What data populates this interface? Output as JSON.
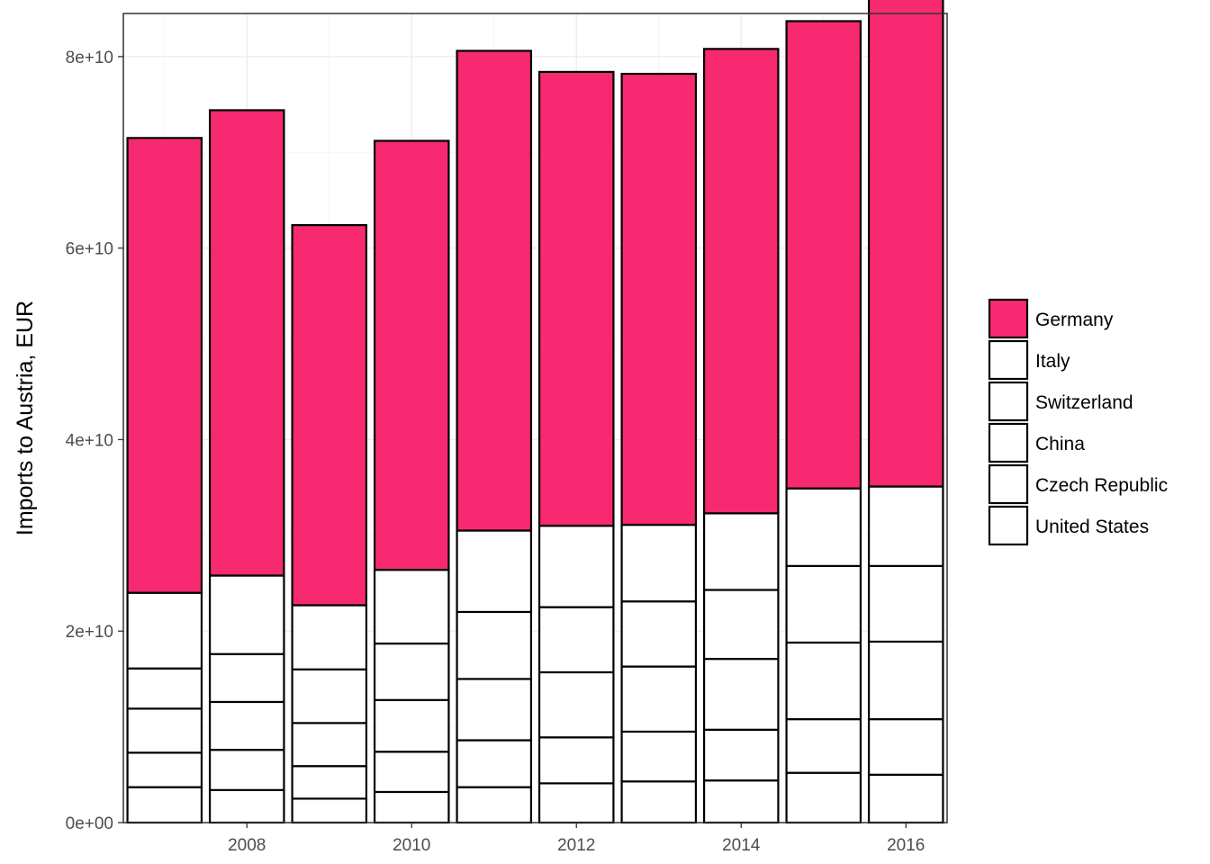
{
  "chart_data": {
    "type": "bar",
    "stacked": true,
    "title": "",
    "xlabel": "",
    "ylabel": "Imports to Austria, EUR",
    "x": [
      2007,
      2008,
      2009,
      2010,
      2011,
      2012,
      2013,
      2014,
      2015,
      2016
    ],
    "x_tick_labels": [
      "2008",
      "2010",
      "2012",
      "2014",
      "2016"
    ],
    "x_tick_values": [
      2008,
      2010,
      2012,
      2014,
      2016
    ],
    "y_tick_labels": [
      "0e+00",
      "2e+10",
      "4e+10",
      "6e+10",
      "8e+10"
    ],
    "y_tick_values": [
      0,
      20000000000,
      40000000000,
      60000000000,
      80000000000
    ],
    "xlim": [
      2006.5,
      2016.5
    ],
    "ylim": [
      0,
      84500000000
    ],
    "grid": true,
    "legend_position": "right",
    "series": [
      {
        "name": "United States",
        "color": "#ffffff",
        "values": [
          3700000000,
          3400000000,
          2500000000,
          3200000000,
          3700000000,
          4100000000,
          4300000000,
          4400000000,
          5200000000,
          5000000000
        ]
      },
      {
        "name": "Czech Republic",
        "color": "#ffffff",
        "values": [
          3600000000,
          4200000000,
          3400000000,
          4200000000,
          4900000000,
          4800000000,
          5200000000,
          5300000000,
          5600000000,
          5800000000
        ]
      },
      {
        "name": "China",
        "color": "#ffffff",
        "values": [
          4600000000,
          5000000000,
          4500000000,
          5400000000,
          6400000000,
          6800000000,
          6800000000,
          7400000000,
          8000000000,
          8100000000
        ]
      },
      {
        "name": "Switzerland",
        "color": "#ffffff",
        "values": [
          4200000000,
          5000000000,
          5600000000,
          5900000000,
          7000000000,
          6800000000,
          6800000000,
          7200000000,
          8000000000,
          7900000000
        ]
      },
      {
        "name": "Italy",
        "color": "#ffffff",
        "values": [
          7900000000,
          8200000000,
          6700000000,
          7700000000,
          8500000000,
          8500000000,
          8000000000,
          8000000000,
          8100000000,
          8300000000
        ]
      },
      {
        "name": "Germany",
        "color": "#f72970",
        "values": [
          47500000000,
          48600000000,
          39700000000,
          44800000000,
          50100000000,
          47400000000,
          47100000000,
          48500000000,
          48800000000,
          51200000000
        ]
      }
    ],
    "legend_order": [
      "Germany",
      "Italy",
      "Switzerland",
      "China",
      "Czech Republic",
      "United States"
    ]
  }
}
